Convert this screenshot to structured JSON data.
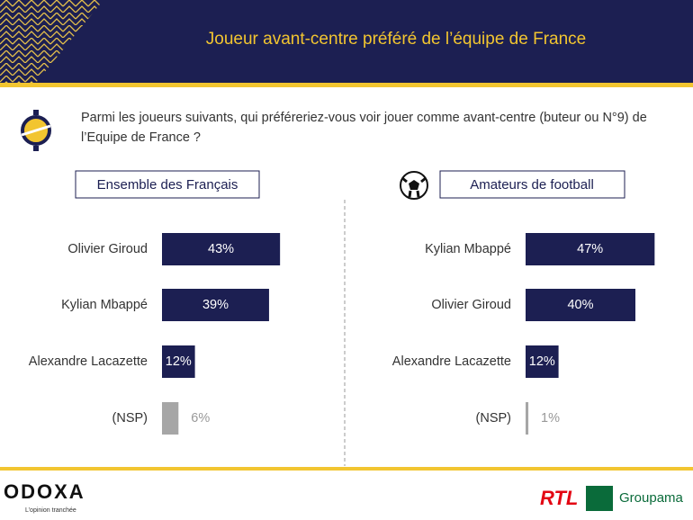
{
  "header": {
    "title": "Joueur avant-centre préféré de l’équipe de France"
  },
  "question": "Parmi les joueurs suivants, qui préféreriez-vous voir jouer comme avant-centre (buteur ou N°9) de l’Equipe de France ?",
  "chart_data": [
    {
      "type": "bar",
      "orientation": "horizontal",
      "title": "Ensemble des Français",
      "categories": [
        "Olivier Giroud",
        "Kylian Mbappé",
        "Alexandre Lacazette",
        "(NSP)"
      ],
      "values": [
        43,
        39,
        12,
        6
      ],
      "value_labels": [
        "43%",
        "39%",
        "12%",
        "6%"
      ],
      "colors": [
        "#1c1f52",
        "#1c1f52",
        "#1c1f52",
        "#a6a6a6"
      ]
    },
    {
      "type": "bar",
      "orientation": "horizontal",
      "title": "Amateurs de football",
      "categories": [
        "Kylian Mbappé",
        "Olivier Giroud",
        "Alexandre Lacazette",
        "(NSP)"
      ],
      "values": [
        47,
        40,
        12,
        1
      ],
      "value_labels": [
        "47%",
        "40%",
        "12%",
        "1%"
      ],
      "colors": [
        "#1c1f52",
        "#1c1f52",
        "#1c1f52",
        "#a6a6a6"
      ]
    }
  ],
  "footer": {
    "logo": "ODOXA",
    "tagline": "L’opinion tranchée",
    "partners": [
      "RTL",
      "Groupama"
    ]
  }
}
